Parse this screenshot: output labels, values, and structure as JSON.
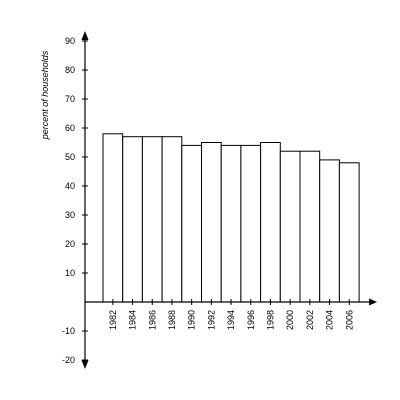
{
  "chart_data": {
    "type": "bar",
    "title": "",
    "xlabel": "",
    "ylabel": "percent of households",
    "categories": [
      "1982",
      "1984",
      "1986",
      "1988",
      "1990",
      "1992",
      "1994",
      "1996",
      "1998",
      "2000",
      "2002",
      "2004",
      "2006"
    ],
    "values": [
      58,
      57,
      57,
      57,
      54,
      55,
      54,
      54,
      55,
      52,
      52,
      49,
      48
    ],
    "ylim": [
      -20,
      90
    ],
    "yticks": [
      -20,
      -10,
      10,
      20,
      30,
      40,
      50,
      60,
      70,
      80,
      90
    ],
    "grid": false,
    "legend": "none",
    "colors": {
      "bar_fill": "#ffffff",
      "bar_stroke": "#000000",
      "axis": "#000000"
    }
  }
}
